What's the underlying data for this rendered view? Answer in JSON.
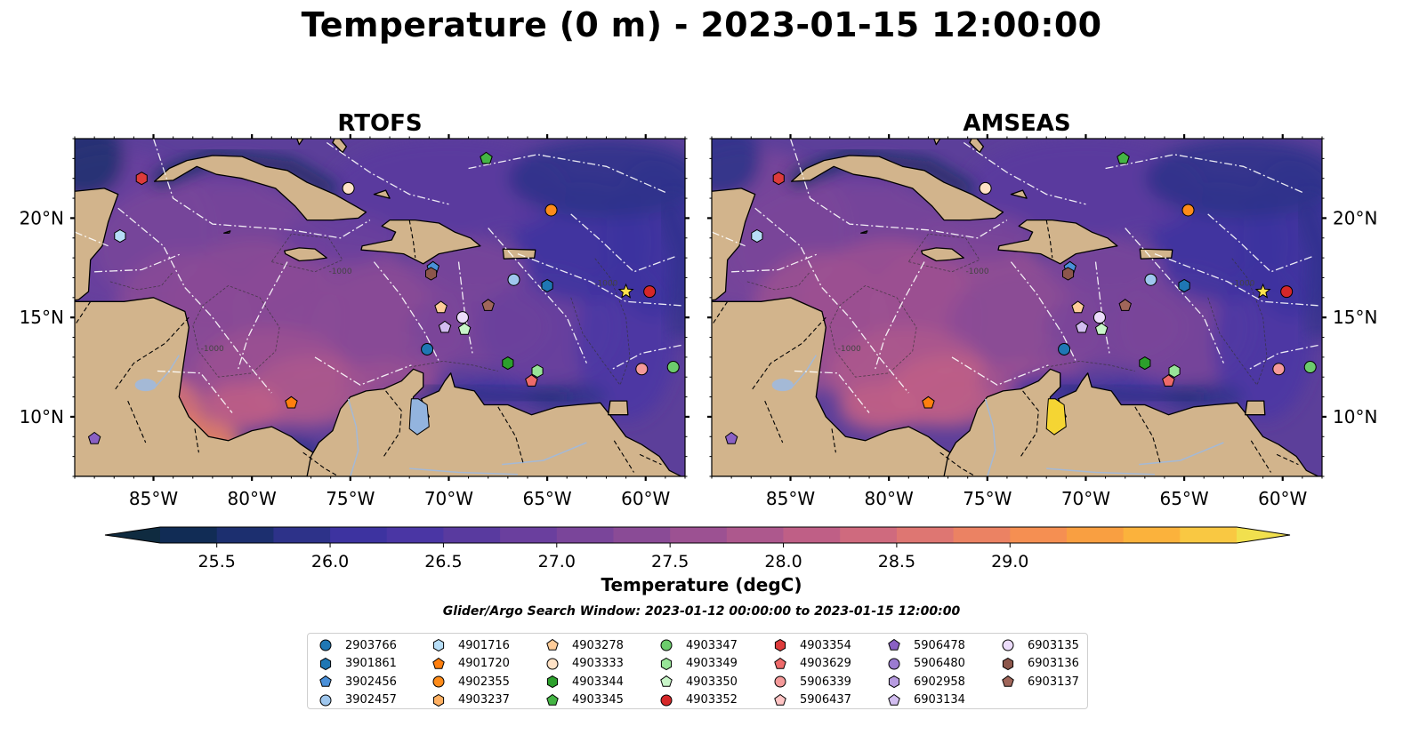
{
  "title": "Temperature (0 m) - 2023-01-15 12:00:00",
  "panels": [
    {
      "title": "RTOFS",
      "variant": "rtofs"
    },
    {
      "title": "AMSEAS",
      "variant": "amseas"
    }
  ],
  "map": {
    "lon_range": [
      -89,
      -58
    ],
    "lat_range": [
      7,
      24
    ],
    "lon_ticks": [
      {
        "value": -85,
        "label": "85°W"
      },
      {
        "value": -80,
        "label": "80°W"
      },
      {
        "value": -75,
        "label": "75°W"
      },
      {
        "value": -70,
        "label": "70°W"
      },
      {
        "value": -65,
        "label": "65°W"
      },
      {
        "value": -60,
        "label": "60°W"
      }
    ],
    "lat_ticks": [
      {
        "value": 10,
        "label": "10°N"
      },
      {
        "value": 15,
        "label": "15°N"
      },
      {
        "value": 20,
        "label": "20°N"
      }
    ],
    "contour_label": "-1000",
    "colors": {
      "land": "#d2b48c",
      "ocean_base": "#5c3f9a",
      "no_data": "#93b4de",
      "coastline": "#000000"
    }
  },
  "colorbar": {
    "min": 25.25,
    "max": 29.25,
    "step": 0.25,
    "ticks": [
      {
        "value": 25.5,
        "label": "25.5"
      },
      {
        "value": 26.0,
        "label": "26.0"
      },
      {
        "value": 26.5,
        "label": "26.5"
      },
      {
        "value": 27.0,
        "label": "27.0"
      },
      {
        "value": 27.5,
        "label": "27.5"
      },
      {
        "value": 28.0,
        "label": "28.0"
      },
      {
        "value": 28.5,
        "label": "28.5"
      },
      {
        "value": 29.0,
        "label": "29.0"
      }
    ],
    "colors": [
      "#0f2b40",
      "#112c55",
      "#1c2f6f",
      "#2d3289",
      "#3d33a0",
      "#4a36a4",
      "#593a9f",
      "#6a3f9e",
      "#7a459a",
      "#8a4b96",
      "#9c5192",
      "#ad588d",
      "#bf5f86",
      "#cf6a7e",
      "#de7672",
      "#eb8263",
      "#f58f52",
      "#f99f41",
      "#fbb23c",
      "#f9c842",
      "#f1e04e"
    ],
    "label": "Temperature (degC)"
  },
  "search_window": "Glider/Argo Search Window: 2023-01-12 00:00:00 to 2023-01-15 12:00:00",
  "legend": {
    "items": [
      {
        "id": "2903766",
        "marker": "circle",
        "color": "#1f77b4"
      },
      {
        "id": "3901861",
        "marker": "hexagon",
        "color": "#1f77b4"
      },
      {
        "id": "3902456",
        "marker": "pentagon",
        "color": "#4a90d9"
      },
      {
        "id": "3902457",
        "marker": "circle",
        "color": "#9fc7ee"
      },
      {
        "id": "4901716",
        "marker": "hexagon",
        "color": "#b7def7"
      },
      {
        "id": "4901720",
        "marker": "pentagon",
        "color": "#ff7f0e"
      },
      {
        "id": "4902355",
        "marker": "circle",
        "color": "#ff8c1a"
      },
      {
        "id": "4903237",
        "marker": "hexagon",
        "color": "#ffb062"
      },
      {
        "id": "4903278",
        "marker": "pentagon",
        "color": "#ffcc99"
      },
      {
        "id": "4903333",
        "marker": "circle",
        "color": "#ffe2c6"
      },
      {
        "id": "4903344",
        "marker": "hexagon",
        "color": "#2ca02c"
      },
      {
        "id": "4903345",
        "marker": "pentagon",
        "color": "#44b544"
      },
      {
        "id": "4903347",
        "marker": "circle",
        "color": "#6ccc6c"
      },
      {
        "id": "4903349",
        "marker": "hexagon",
        "color": "#98e598"
      },
      {
        "id": "4903350",
        "marker": "pentagon",
        "color": "#c8f5c8"
      },
      {
        "id": "4903352",
        "marker": "circle",
        "color": "#d62728"
      },
      {
        "id": "4903354",
        "marker": "hexagon",
        "color": "#dd3b3b"
      },
      {
        "id": "4903629",
        "marker": "pentagon",
        "color": "#ee6a6a"
      },
      {
        "id": "5906339",
        "marker": "circle",
        "color": "#f59a9a"
      },
      {
        "id": "5906437",
        "marker": "pentagon",
        "color": "#ffc4c4"
      },
      {
        "id": "5906478",
        "marker": "pentagon",
        "color": "#8a60c4"
      },
      {
        "id": "5906480",
        "marker": "circle",
        "color": "#9b7bd1"
      },
      {
        "id": "6902958",
        "marker": "hexagon",
        "color": "#b79be0"
      },
      {
        "id": "6903134",
        "marker": "pentagon",
        "color": "#d2bdf0"
      },
      {
        "id": "6903135",
        "marker": "circle",
        "color": "#ecdcfb"
      },
      {
        "id": "6903136",
        "marker": "hexagon",
        "color": "#8c564b"
      },
      {
        "id": "6903137",
        "marker": "pentagon",
        "color": "#a0665a"
      }
    ]
  },
  "floats": [
    {
      "lon": -85.6,
      "lat": 22.0,
      "marker": "hexagon",
      "color": "#dd3b3b"
    },
    {
      "lon": -75.1,
      "lat": 21.5,
      "marker": "circle",
      "color": "#ffe2c6"
    },
    {
      "lon": -68.1,
      "lat": 23.0,
      "marker": "pentagon",
      "color": "#44b544"
    },
    {
      "lon": -86.7,
      "lat": 19.1,
      "marker": "hexagon",
      "color": "#b7def7"
    },
    {
      "lon": -64.8,
      "lat": 20.4,
      "marker": "circle",
      "color": "#ff8c1a"
    },
    {
      "lon": -70.8,
      "lat": 17.5,
      "marker": "pentagon",
      "color": "#4a90d9"
    },
    {
      "lon": -70.9,
      "lat": 17.2,
      "marker": "hexagon",
      "color": "#8c564b"
    },
    {
      "lon": -66.7,
      "lat": 16.9,
      "marker": "circle",
      "color": "#9fc7ee"
    },
    {
      "lon": -65.0,
      "lat": 16.6,
      "marker": "hexagon",
      "color": "#1f77b4"
    },
    {
      "lon": -61.0,
      "lat": 16.3,
      "marker": "star",
      "color": "#ffe14d"
    },
    {
      "lon": -59.8,
      "lat": 16.3,
      "marker": "circle",
      "color": "#d62728"
    },
    {
      "lon": -70.4,
      "lat": 15.5,
      "marker": "pentagon",
      "color": "#ffcc99"
    },
    {
      "lon": -68.0,
      "lat": 15.6,
      "marker": "pentagon",
      "color": "#a0665a"
    },
    {
      "lon": -69.3,
      "lat": 15.0,
      "marker": "circle",
      "color": "#ecdcfb"
    },
    {
      "lon": -70.2,
      "lat": 14.5,
      "marker": "pentagon",
      "color": "#d2bdf0"
    },
    {
      "lon": -69.2,
      "lat": 14.4,
      "marker": "pentagon",
      "color": "#c8f5c8"
    },
    {
      "lon": -71.1,
      "lat": 13.4,
      "marker": "circle",
      "color": "#1f77b4"
    },
    {
      "lon": -67.0,
      "lat": 12.7,
      "marker": "hexagon",
      "color": "#2ca02c"
    },
    {
      "lon": -65.5,
      "lat": 12.3,
      "marker": "hexagon",
      "color": "#98e598"
    },
    {
      "lon": -65.8,
      "lat": 11.8,
      "marker": "pentagon",
      "color": "#ee6a6a"
    },
    {
      "lon": -60.2,
      "lat": 12.4,
      "marker": "circle",
      "color": "#f59a9a"
    },
    {
      "lon": -58.6,
      "lat": 12.5,
      "marker": "circle",
      "color": "#6ccc6c"
    },
    {
      "lon": -78.0,
      "lat": 10.7,
      "marker": "pentagon",
      "color": "#ff7f0e"
    },
    {
      "lon": -88.0,
      "lat": 8.9,
      "marker": "pentagon",
      "color": "#8a60c4"
    }
  ]
}
